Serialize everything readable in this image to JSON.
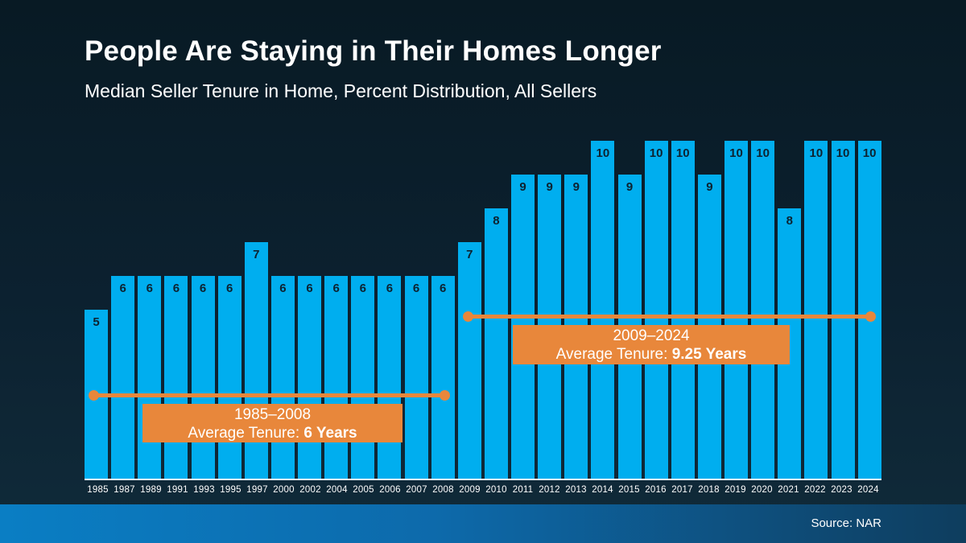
{
  "header": {
    "title": "People Are Staying in Their Homes Longer",
    "subtitle": "Median Seller Tenure in Home, Percent Distribution, All Sellers"
  },
  "footer": {
    "source": "Source: NAR"
  },
  "colors": {
    "background_top": "#081a24",
    "background_bottom": "#102b3a",
    "bar_blue": "#00aeef",
    "accent_orange": "#e8873b",
    "text_white": "#ffffff",
    "bar_value_label": "#0d2230",
    "footer_gradient_left": "#0a7ec4",
    "footer_gradient_right": "#0e3d5e"
  },
  "chart_data": {
    "type": "bar",
    "title": "People Are Staying in Their Homes Longer",
    "subtitle": "Median Seller Tenure in Home, Percent Distribution, All Sellers",
    "categories": [
      "1985",
      "1987",
      "1989",
      "1991",
      "1993",
      "1995",
      "1997",
      "2000",
      "2002",
      "2004",
      "2005",
      "2006",
      "2007",
      "2008",
      "2009",
      "2010",
      "2011",
      "2012",
      "2013",
      "2014",
      "2015",
      "2016",
      "2017",
      "2018",
      "2019",
      "2020",
      "2021",
      "2022",
      "2023",
      "2024"
    ],
    "values": [
      5,
      6,
      6,
      6,
      6,
      6,
      7,
      6,
      6,
      6,
      6,
      6,
      6,
      6,
      7,
      8,
      9,
      9,
      9,
      10,
      9,
      10,
      10,
      9,
      10,
      10,
      8,
      10,
      10,
      10
    ],
    "ylim": [
      0,
      10
    ],
    "grid": false,
    "value_labels_shown": true,
    "legend": "none",
    "annotations": [
      {
        "span_start": "1985",
        "span_end": "2008",
        "range": "1985–2008",
        "label_prefix": "Average Tenure: ",
        "label_value": "6 Years"
      },
      {
        "span_start": "2009",
        "span_end": "2024",
        "range": "2009–2024",
        "label_prefix": "Average Tenure: ",
        "label_value": "9.25 Years"
      }
    ]
  }
}
